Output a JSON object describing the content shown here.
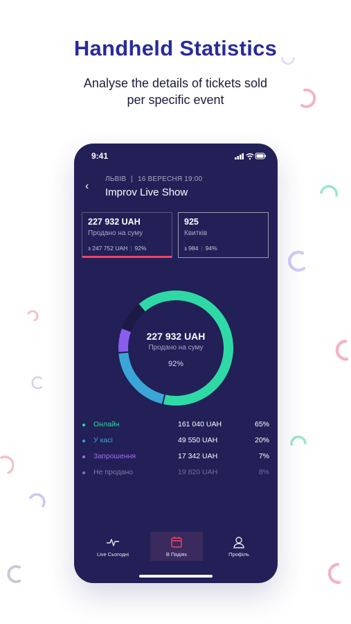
{
  "promo": {
    "headline": "Handheld Statistics",
    "subline_1": "Analyse the details of tickets sold",
    "subline_2": "per specific event"
  },
  "status_bar": {
    "time": "9:41",
    "icons": [
      "signal-icon",
      "wifi-icon",
      "battery-icon"
    ]
  },
  "event": {
    "city": "ЛЬВІВ",
    "date_time": "16 ВЕРЕСНЯ 19:00",
    "title": "Improv Live Show",
    "back_icon": "‹"
  },
  "cards": [
    {
      "value": "227 932 UAH",
      "label": "Продано на суму",
      "total": "з 247 752 UAH",
      "percent": "92%",
      "active": true
    },
    {
      "value": "925",
      "label": "Квитків",
      "total": "з 984",
      "percent": "94%",
      "active": false
    }
  ],
  "donut": {
    "value": "227 932 UAH",
    "label": "Продано на суму",
    "percent": "92%"
  },
  "chart_data": {
    "type": "pie",
    "categories": [
      "Онлайн",
      "У касі",
      "Запрошення",
      "Не продано"
    ],
    "values": [
      65,
      20,
      7,
      8
    ],
    "colors": [
      "#2fd9a6",
      "#3aa6d8",
      "#8a5cf0",
      "#1b1a46"
    ]
  },
  "breakdown": [
    {
      "name": "Онлайн",
      "amount": "161 040 UAH",
      "percent": "65%",
      "color": "#2fd9a6"
    },
    {
      "name": "У касі",
      "amount": "49 550 UAH",
      "percent": "20%",
      "color": "#3aa6d8"
    },
    {
      "name": "Запрошення",
      "amount": "17 342 UAH",
      "percent": "7%",
      "color": "#a46ef5"
    },
    {
      "name": "Не продано",
      "amount": "19 820 UAH",
      "percent": "8%",
      "color": "#7c7ca6"
    }
  ],
  "nav": {
    "items": [
      {
        "label": "Live Сьогодні",
        "icon": "pulse-icon",
        "active": false
      },
      {
        "label": "В Подіях",
        "icon": "calendar-icon",
        "active": true
      },
      {
        "label": "Профіль",
        "icon": "user-icon",
        "active": false
      }
    ]
  },
  "colors": {
    "accent_red": "#f24466",
    "phone_bg": "#222057",
    "headline": "#2a2a9c"
  }
}
